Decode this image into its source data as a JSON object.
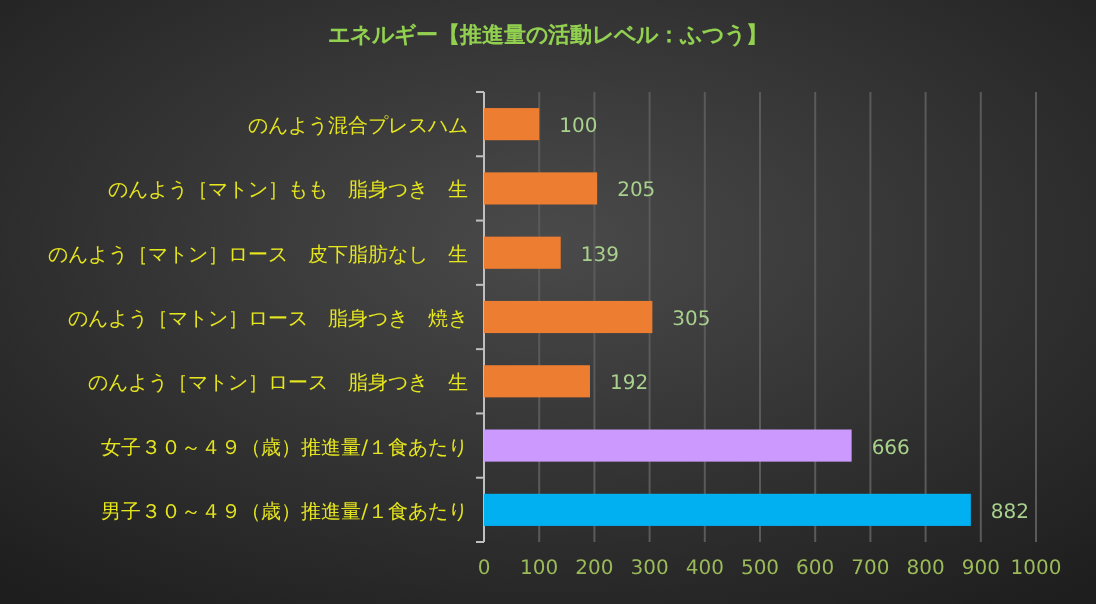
{
  "chart_data": {
    "type": "bar",
    "orientation": "horizontal",
    "title": "エネルギー【推進量の活動レベル：ふつう】",
    "categories": [
      "のんよう混合プレスハム",
      "のんよう［マトン］もも　脂身つき　生",
      "のんよう［マトン］ロース　皮下脂肪なし　生",
      "のんよう［マトン］ロース　脂身つき　焼き",
      "のんよう［マトン］ロース　脂身つき　生",
      "女子３０～４９（歳）推進量/１食あたり",
      "男子３０～４９（歳）推進量/１食あたり"
    ],
    "values": [
      100,
      205,
      139,
      305,
      192,
      666,
      882
    ],
    "colors": [
      "#ed7d31",
      "#ed7d31",
      "#ed7d31",
      "#ed7d31",
      "#ed7d31",
      "#cc99ff",
      "#00b0f0"
    ],
    "xlim": [
      0,
      1000
    ],
    "xticks": [
      0,
      100,
      200,
      300,
      400,
      500,
      600,
      700,
      800,
      900,
      1000
    ],
    "grid": "x",
    "data_labels": true
  }
}
